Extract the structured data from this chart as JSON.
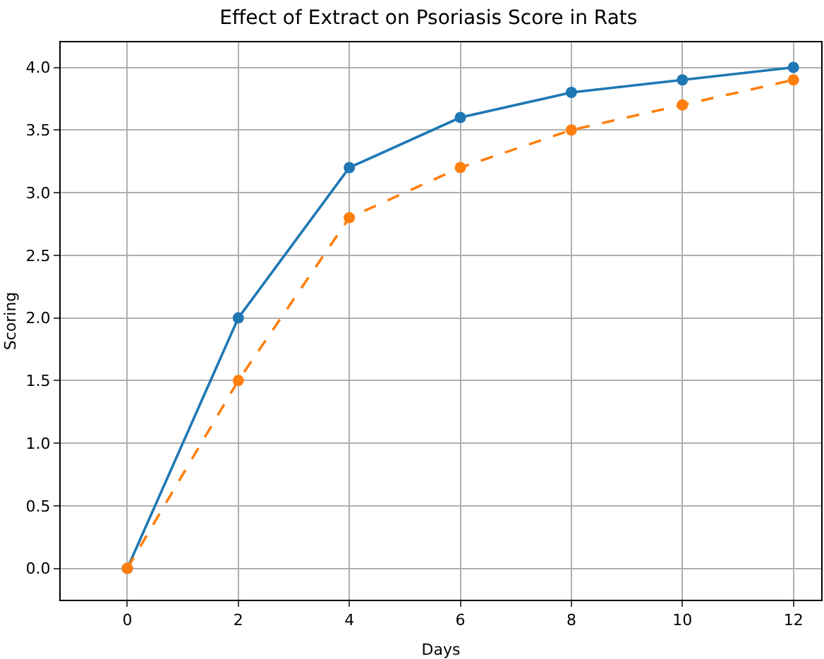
{
  "chart_data": {
    "type": "line",
    "title": "Effect of Extract on Psoriasis Score in Rats",
    "xlabel": "Days",
    "ylabel": "Scoring",
    "x": [
      0,
      2,
      4,
      6,
      8,
      10,
      12
    ],
    "series": [
      {
        "color": "#1f77b4",
        "line_style": "solid",
        "values": [
          0,
          2.0,
          3.2,
          3.6,
          3.8,
          3.9,
          4.0
        ]
      },
      {
        "color": "#ff7f0e",
        "line_style": "dashed",
        "values": [
          0,
          1.5,
          2.8,
          3.2,
          3.5,
          3.7,
          3.9
        ]
      }
    ],
    "xlim": [
      -1.2,
      12.5
    ],
    "xticks": [
      0,
      2,
      4,
      6,
      8,
      10,
      12
    ],
    "ylim": [
      -0.25,
      4.2
    ],
    "yticks": [
      {
        "value": 0,
        "label": "0.0"
      },
      {
        "value": 0.5,
        "label": "0.5"
      },
      {
        "value": 1,
        "label": "1.0"
      },
      {
        "value": 1.5,
        "label": "1.5"
      },
      {
        "value": 2,
        "label": "2.0"
      },
      {
        "value": 2.5,
        "label": "2.5"
      },
      {
        "value": 3,
        "label": "3.0"
      },
      {
        "value": 3.5,
        "label": "3.5"
      },
      {
        "value": 4,
        "label": "4.0"
      }
    ],
    "grid": true,
    "marker": "circle"
  }
}
